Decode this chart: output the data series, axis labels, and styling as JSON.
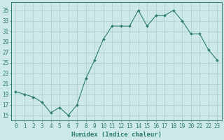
{
  "x": [
    0,
    1,
    2,
    3,
    4,
    5,
    6,
    7,
    8,
    9,
    10,
    11,
    12,
    13,
    14,
    15,
    16,
    17,
    18,
    19,
    20,
    21,
    22,
    23
  ],
  "y": [
    19.5,
    19.0,
    18.5,
    17.5,
    15.5,
    16.5,
    15.0,
    17.0,
    22.0,
    25.5,
    29.5,
    32.0,
    32.0,
    32.0,
    35.0,
    32.0,
    34.0,
    34.0,
    35.0,
    33.0,
    30.5,
    30.5,
    27.5,
    25.5
  ],
  "line_color": "#2e7d6e",
  "marker": "D",
  "marker_size": 2.0,
  "bg_color": "#cce8e8",
  "grid_color": "#aacaca",
  "xlabel": "Humidex (Indice chaleur)",
  "ylabel_ticks": [
    15,
    17,
    19,
    21,
    23,
    25,
    27,
    29,
    31,
    33,
    35
  ],
  "xlim": [
    -0.5,
    23.5
  ],
  "ylim": [
    14.0,
    36.5
  ],
  "axis_color": "#2e7d6e",
  "tick_color": "#2e7d6e",
  "label_color": "#2e7d6e",
  "font_size_xlabel": 6.5,
  "font_size_ticks": 5.5
}
